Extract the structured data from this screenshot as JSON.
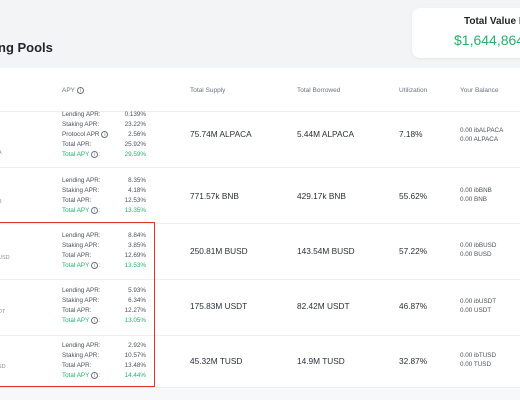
{
  "header": {
    "title": "ng Pools",
    "tvl_label": "Total Value L",
    "tvl_value": "$1,644,864"
  },
  "table": {
    "columns": {
      "apy": "APY",
      "supply": "Total Supply",
      "borrowed": "Total Borrowed",
      "utilization": "Utilization",
      "balance": "Your Balance"
    },
    "rows": [
      {
        "tag": "A",
        "apy": [
          {
            "label": "Lending APR:",
            "value": "0.139%"
          },
          {
            "label": "Staking APR:",
            "value": "23.22%"
          },
          {
            "label": "Protocol APR",
            "value": "2.56%",
            "info": true
          },
          {
            "label": "Total APR:",
            "value": "25.92%"
          },
          {
            "label": "Total APY",
            "value": "29.59%",
            "total": true,
            "info": true
          }
        ],
        "supply": "75.74M ALPACA",
        "borrowed": "5.44M ALPACA",
        "utilization": "7.18%",
        "balance": [
          "0.00 ibALPACA",
          "0.00 ALPACA"
        ]
      },
      {
        "tag": "B",
        "apy": [
          {
            "label": "Lending APR:",
            "value": "8.35%"
          },
          {
            "label": "Staking APR:",
            "value": "4.18%"
          },
          {
            "label": "Total APR:",
            "value": "12.53%"
          },
          {
            "label": "Total APY",
            "value": "13.35%",
            "total": true,
            "info": true
          }
        ],
        "supply": "771.57k BNB",
        "borrowed": "429.17k BNB",
        "utilization": "55.62%",
        "balance": [
          "0.00 ibBNB",
          "0.00 BNB"
        ]
      },
      {
        "tag": "USD",
        "apy": [
          {
            "label": "Lending APR:",
            "value": "8.84%"
          },
          {
            "label": "Staking APR:",
            "value": "3.85%"
          },
          {
            "label": "Total APR:",
            "value": "12.69%"
          },
          {
            "label": "Total APY",
            "value": "13.53%",
            "total": true,
            "info": true
          }
        ],
        "supply": "250.81M BUSD",
        "borrowed": "143.54M BUSD",
        "utilization": "57.22%",
        "balance": [
          "0.00 ibBUSD",
          "0.00 BUSD"
        ]
      },
      {
        "tag": "DT",
        "apy": [
          {
            "label": "Lending APR:",
            "value": "5.93%"
          },
          {
            "label": "Staking APR:",
            "value": "6.34%"
          },
          {
            "label": "Total APR:",
            "value": "12.27%"
          },
          {
            "label": "Total APY",
            "value": "13.05%",
            "total": true,
            "info": true
          }
        ],
        "supply": "175.83M USDT",
        "borrowed": "82.42M USDT",
        "utilization": "46.87%",
        "balance": [
          "0.00 ibUSDT",
          "0.00 USDT"
        ]
      },
      {
        "tag": "SD",
        "apy": [
          {
            "label": "Lending APR:",
            "value": "2.92%"
          },
          {
            "label": "Staking APR:",
            "value": "10.57%"
          },
          {
            "label": "Total APR:",
            "value": "13.48%"
          },
          {
            "label": "Total APY",
            "value": "14.44%",
            "total": true,
            "info": true
          }
        ],
        "supply": "45.32M TUSD",
        "borrowed": "14.9M TUSD",
        "utilization": "32.87%",
        "balance": [
          "0.00 ibTUSD",
          "0.00 TUSD"
        ]
      }
    ]
  },
  "colors": {
    "accent_green": "#23b26d",
    "highlight_red": "#e0332b",
    "header_bg": "#f3f4f6"
  },
  "icons": {
    "info": "info-circle-icon"
  }
}
